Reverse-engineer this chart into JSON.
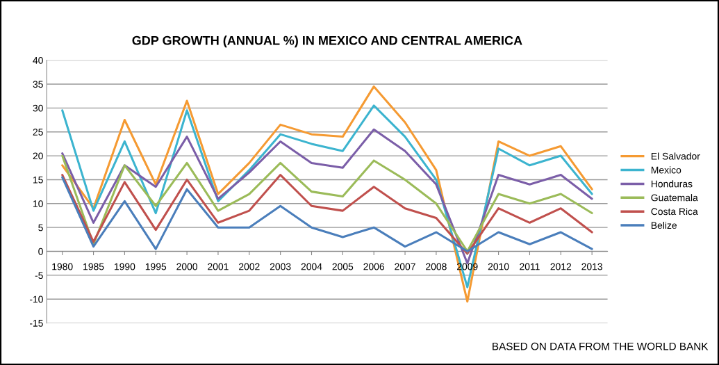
{
  "chart_data": {
    "type": "line",
    "title": "GDP GROWTH (ANNUAL %) IN MEXICO AND CENTRAL AMERICA",
    "categories": [
      "1980",
      "1985",
      "1990",
      "1995",
      "2000",
      "2001",
      "2002",
      "2003",
      "2004",
      "2005",
      "2006",
      "2007",
      "2008",
      "2009",
      "2010",
      "2011",
      "2012",
      "2013"
    ],
    "series": [
      {
        "name": "El Salvador",
        "color": "#f59a32",
        "values": [
          18,
          9,
          27.5,
          14,
          31.5,
          12,
          18.5,
          26.5,
          24.5,
          24,
          34.5,
          27,
          17,
          -10.5,
          23,
          20,
          22,
          13
        ]
      },
      {
        "name": "Mexico",
        "color": "#3cb4cf",
        "values": [
          29.5,
          8.5,
          23,
          8,
          29.5,
          10.5,
          17,
          24.5,
          22.5,
          21,
          30.5,
          24,
          15,
          -7.5,
          21.5,
          18,
          20,
          12
        ]
      },
      {
        "name": "Honduras",
        "color": "#7b5ea8",
        "values": [
          20.5,
          6,
          18,
          13.5,
          24,
          11,
          16.5,
          23,
          18.5,
          17.5,
          25.5,
          21,
          14,
          -2.5,
          16,
          14,
          16,
          11
        ]
      },
      {
        "name": "Guatemala",
        "color": "#9bbb59",
        "values": [
          20,
          1.5,
          18,
          9.5,
          18.5,
          8.5,
          12,
          18.5,
          12.5,
          11.5,
          19,
          15,
          10,
          0,
          12,
          10,
          12,
          8
        ]
      },
      {
        "name": "Costa Rica",
        "color": "#c0504d",
        "values": [
          16,
          2,
          14.5,
          4.5,
          15,
          6,
          8.5,
          16,
          9.5,
          8.5,
          13.5,
          9,
          7,
          -0.5,
          9,
          6,
          9,
          4
        ]
      },
      {
        "name": "Belize",
        "color": "#4a7ebb",
        "values": [
          15.5,
          1,
          10.5,
          0.5,
          13,
          5,
          5,
          9.5,
          5,
          3,
          5,
          1,
          4,
          0,
          4,
          1.5,
          4,
          0.5
        ]
      }
    ],
    "ylim": [
      -15,
      40
    ],
    "yticks": [
      -15,
      -10,
      -5,
      0,
      5,
      10,
      15,
      20,
      25,
      30,
      35,
      40
    ],
    "grid": "y",
    "legend": "right",
    "marker": "none",
    "line_style": "solid",
    "annotations": [
      "BASED ON DATA FROM THE WORLD BANK"
    ]
  }
}
